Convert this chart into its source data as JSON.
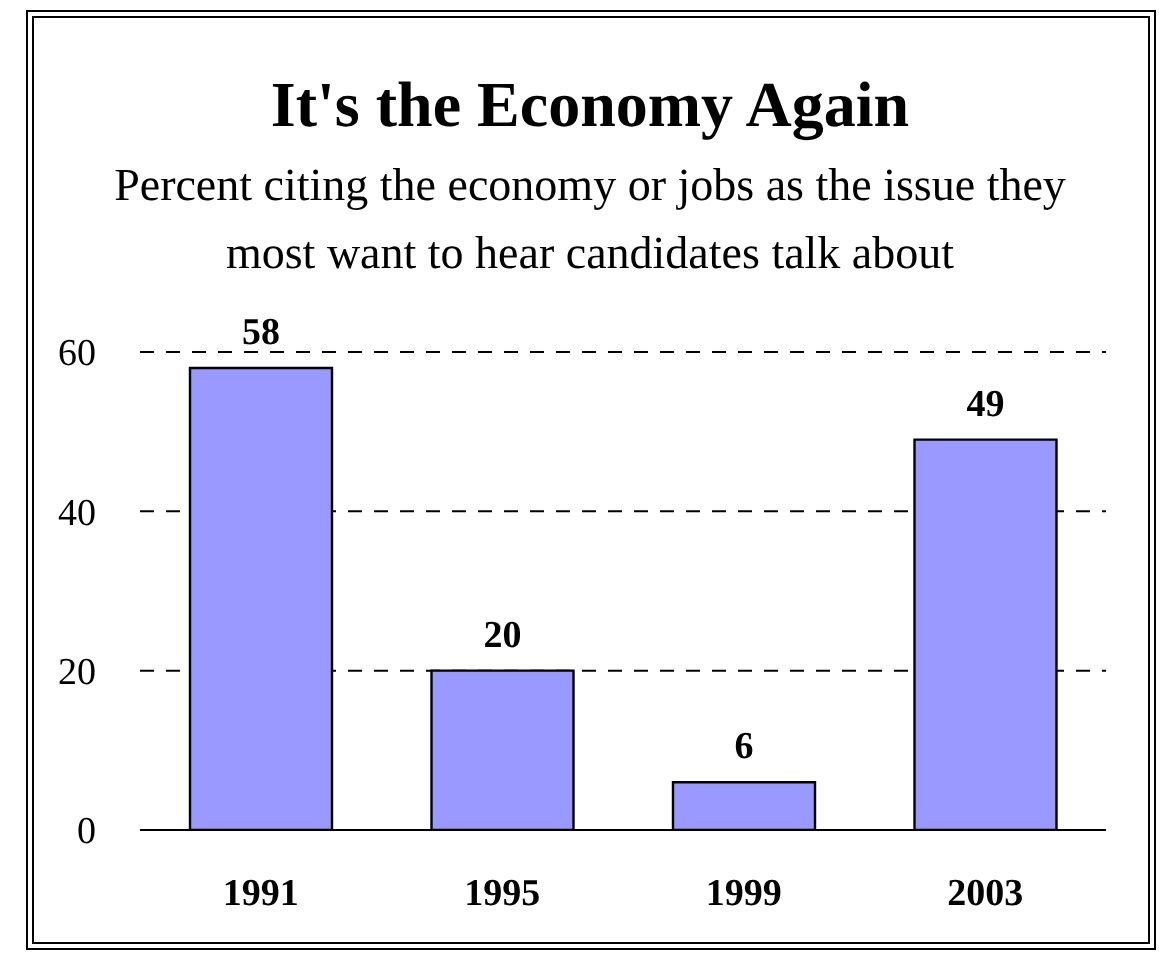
{
  "chart_data": {
    "type": "bar",
    "title": "It's the Economy Again",
    "subtitle": "Percent citing the economy or jobs as the issue they most want to hear candidates talk about",
    "categories": [
      "1991",
      "1995",
      "1999",
      "2003"
    ],
    "values": [
      58,
      20,
      6,
      49
    ],
    "color": "#9999ff",
    "ylim": [
      0,
      60
    ],
    "yticks": [
      0,
      20,
      40,
      60
    ],
    "grid": "y",
    "data_labels": true
  }
}
